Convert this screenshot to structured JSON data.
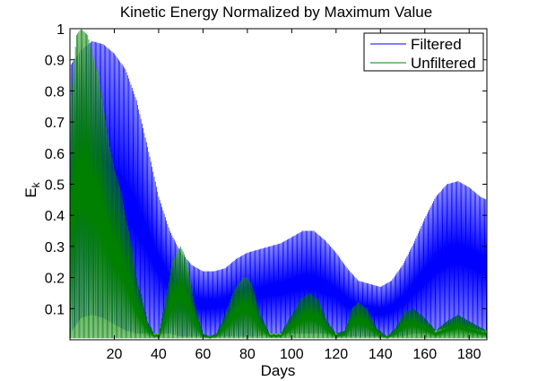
{
  "chart_data": {
    "type": "line",
    "title": "Kinetic Energy Normalized by Maximum Value",
    "xlabel": "Days",
    "ylabel": "E",
    "ylabel_subscript": "k",
    "xlim": [
      0,
      188
    ],
    "ylim": [
      0,
      1
    ],
    "xticks": [
      20,
      40,
      60,
      80,
      100,
      120,
      140,
      160,
      180
    ],
    "yticks": [
      0.1,
      0.2,
      0.3,
      0.4,
      0.5,
      0.6,
      0.7,
      0.8,
      0.9,
      1
    ],
    "grid": false,
    "legend_position": "top-right",
    "series": [
      {
        "name": "Filtered",
        "color": "#0000ff",
        "upper_envelope": {
          "x": [
            0,
            5,
            10,
            15,
            20,
            25,
            30,
            35,
            40,
            45,
            50,
            55,
            60,
            65,
            70,
            75,
            80,
            85,
            90,
            95,
            100,
            105,
            110,
            115,
            120,
            125,
            130,
            135,
            140,
            145,
            150,
            155,
            160,
            165,
            170,
            175,
            180,
            185,
            188
          ],
          "y": [
            0.88,
            0.93,
            0.96,
            0.95,
            0.92,
            0.87,
            0.77,
            0.62,
            0.46,
            0.35,
            0.28,
            0.24,
            0.22,
            0.22,
            0.23,
            0.26,
            0.28,
            0.29,
            0.3,
            0.31,
            0.33,
            0.35,
            0.35,
            0.32,
            0.28,
            0.23,
            0.19,
            0.18,
            0.17,
            0.19,
            0.24,
            0.31,
            0.39,
            0.46,
            0.5,
            0.51,
            0.49,
            0.46,
            0.45
          ]
        },
        "lower_envelope": {
          "x": [
            0,
            5,
            10,
            15,
            20,
            25,
            30,
            35,
            40,
            45,
            50,
            55,
            60,
            65,
            70,
            75,
            80,
            85,
            90,
            95,
            100,
            105,
            110,
            115,
            120,
            125,
            130,
            135,
            140,
            145,
            150,
            155,
            160,
            165,
            170,
            175,
            180,
            185,
            188
          ],
          "y": [
            0.02,
            0.07,
            0.08,
            0.07,
            0.05,
            0.03,
            0.02,
            0.02,
            0.02,
            0.02,
            0.01,
            0.01,
            0.01,
            0.01,
            0.01,
            0.01,
            0.01,
            0.01,
            0.02,
            0.02,
            0.02,
            0.02,
            0.02,
            0.02,
            0.02,
            0.01,
            0.01,
            0.01,
            0.01,
            0.01,
            0.01,
            0.02,
            0.02,
            0.03,
            0.04,
            0.04,
            0.04,
            0.03,
            0.03
          ]
        }
      },
      {
        "name": "Unfiltered",
        "color": "#008000",
        "upper_envelope": {
          "x": [
            0,
            3,
            5,
            8,
            10,
            13,
            15,
            18,
            20,
            23,
            25,
            28,
            30,
            33,
            35,
            38,
            40,
            43,
            46,
            50,
            53,
            56,
            60,
            63,
            66,
            70,
            74,
            78,
            80,
            82,
            86,
            90,
            95,
            100,
            104,
            108,
            112,
            116,
            120,
            124,
            127,
            130,
            134,
            138,
            143,
            147,
            151,
            155,
            160,
            165,
            170,
            175,
            180,
            185,
            188
          ],
          "y": [
            0.75,
            0.98,
            1.0,
            0.98,
            0.92,
            0.85,
            0.75,
            0.62,
            0.55,
            0.48,
            0.4,
            0.3,
            0.2,
            0.12,
            0.06,
            0.02,
            0.02,
            0.12,
            0.25,
            0.3,
            0.25,
            0.12,
            0.02,
            0.01,
            0.02,
            0.08,
            0.16,
            0.2,
            0.2,
            0.18,
            0.08,
            0.02,
            0.02,
            0.08,
            0.13,
            0.15,
            0.13,
            0.06,
            0.02,
            0.03,
            0.1,
            0.12,
            0.1,
            0.04,
            0.01,
            0.04,
            0.09,
            0.1,
            0.07,
            0.03,
            0.06,
            0.08,
            0.06,
            0.04,
            0.03
          ]
        }
      }
    ]
  }
}
